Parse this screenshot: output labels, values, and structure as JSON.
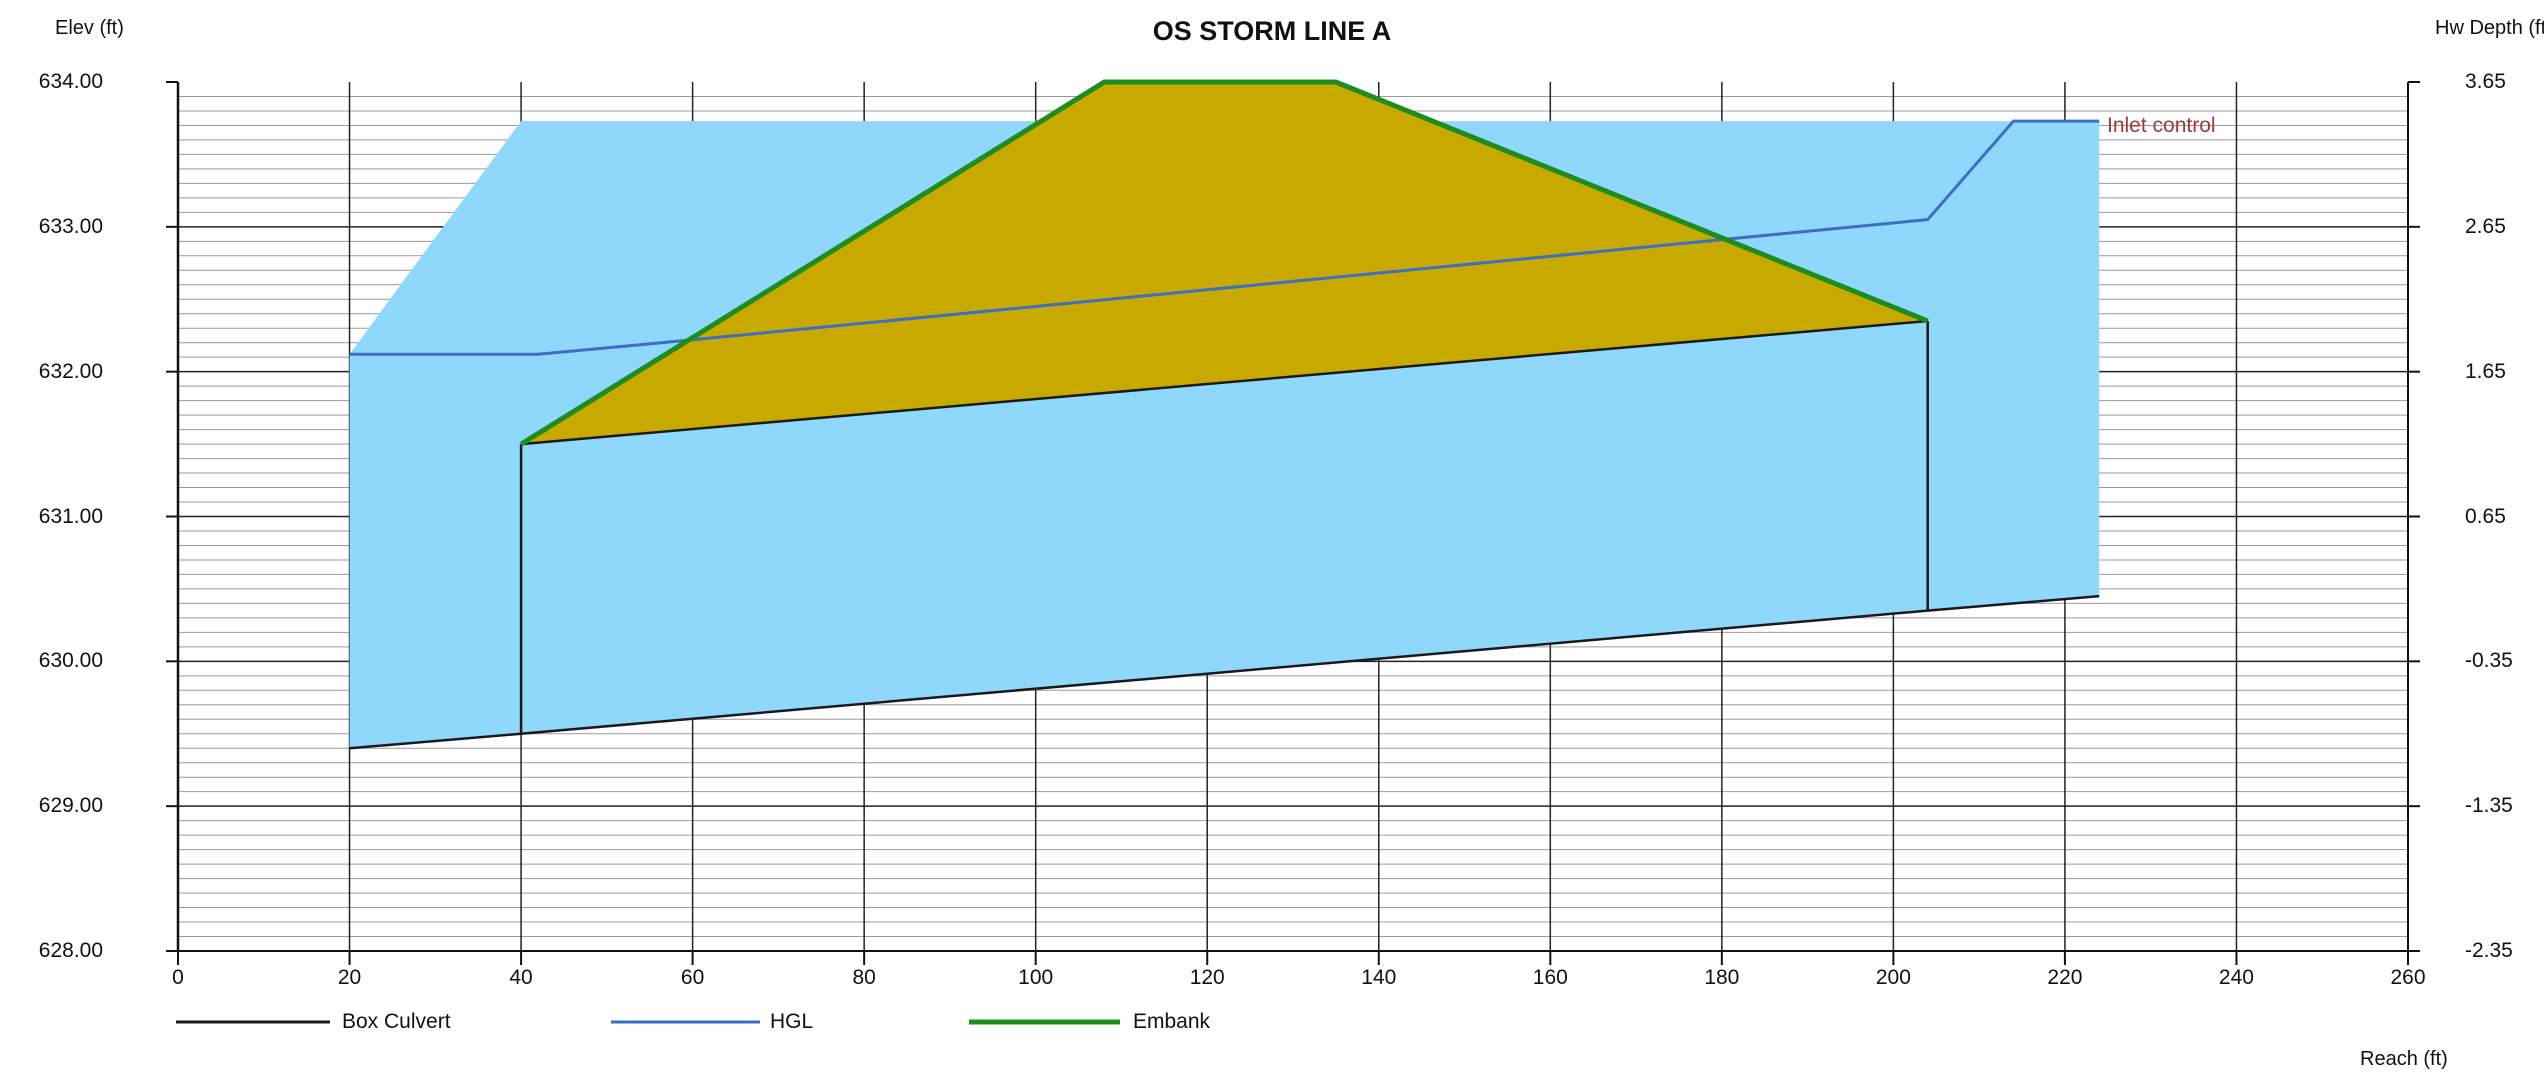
{
  "chart_data": {
    "type": "area",
    "title": "OS STORM LINE A",
    "ylabel_left": "Elev (ft)",
    "ylabel_right": "Hw Depth (ft)",
    "xlabel": "Reach (ft)",
    "xlim": [
      0,
      260
    ],
    "ylim": [
      628,
      634
    ],
    "x_ticks": [
      "0",
      "20",
      "40",
      "60",
      "80",
      "100",
      "120",
      "140",
      "160",
      "180",
      "200",
      "220",
      "240",
      "260"
    ],
    "y_ticks_left": [
      "628.00",
      "629.00",
      "630.00",
      "631.00",
      "632.00",
      "633.00",
      "634.00"
    ],
    "y_ticks_right": [
      "-2.35",
      "-1.35",
      "-0.35",
      "0.65",
      "1.65",
      "2.65",
      "3.65"
    ],
    "grid": true,
    "colors": {
      "water": "#8fd8fb",
      "embankment_fill": "#c8a900",
      "box_culvert": "#1a1a1a",
      "hgl": "#3a6fc4",
      "embank": "#1e8c1e",
      "annotation": "#a0393b"
    },
    "series": [
      {
        "name": "Box Culvert",
        "color": "#1a1a1a",
        "x": [
          20,
          40,
          204,
          224
        ],
        "invert": [
          629.4,
          629.5,
          630.35,
          630.45
        ],
        "crown_x": [
          40,
          204
        ],
        "crown": [
          631.5,
          632.35
        ]
      },
      {
        "name": "HGL",
        "color": "#3a6fc4",
        "x": [
          20,
          42,
          60,
          204,
          214,
          224
        ],
        "y": [
          632.12,
          632.12,
          632.22,
          633.05,
          633.73,
          633.73
        ]
      },
      {
        "name": "Embank",
        "color": "#1e8c1e",
        "x": [
          40,
          108,
          135,
          204
        ],
        "y": [
          631.5,
          634.0,
          634.0,
          632.35
        ]
      }
    ],
    "water_area": {
      "x": [
        20,
        40,
        204,
        224
      ],
      "top": [
        632.12,
        633.73,
        633.73,
        633.73
      ],
      "bottom": [
        629.4,
        629.5,
        630.35,
        630.45
      ]
    },
    "annotations": [
      {
        "text": "Inlet control",
        "x": 224,
        "y": 633.73
      }
    ],
    "legend": [
      "Box Culvert",
      "HGL",
      "Embank"
    ],
    "legend_position": "bottom-left"
  }
}
